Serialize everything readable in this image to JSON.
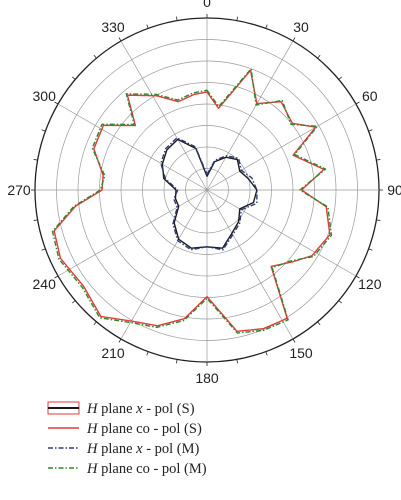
{
  "chart_data": {
    "type": "polar-line",
    "angle_tick_labels": [
      "0",
      "30",
      "60",
      "90",
      "120",
      "150",
      "180",
      "210",
      "240",
      "270",
      "300",
      "330"
    ],
    "angle_direction": "clockwise",
    "zero_angle_position": "top",
    "radial_rings": 8,
    "radial_ticks_labeled": false,
    "grid": true,
    "legend_position": "bottom-left",
    "series": [
      {
        "name_parts": [
          "H",
          " plane ",
          "x",
          " - pol (S)"
        ],
        "color": "#1a1a1a",
        "legend_box_color": "#e23b3b",
        "dash": "solid",
        "points": [
          [
            0,
            0.08
          ],
          [
            15,
            0.17
          ],
          [
            30,
            0.22
          ],
          [
            45,
            0.25
          ],
          [
            60,
            0.22
          ],
          [
            75,
            0.25
          ],
          [
            90,
            0.29
          ],
          [
            105,
            0.28
          ],
          [
            120,
            0.22
          ],
          [
            135,
            0.26
          ],
          [
            150,
            0.29
          ],
          [
            165,
            0.35
          ],
          [
            180,
            0.33
          ],
          [
            195,
            0.35
          ],
          [
            210,
            0.33
          ],
          [
            225,
            0.27
          ],
          [
            240,
            0.19
          ],
          [
            255,
            0.19
          ],
          [
            270,
            0.18
          ],
          [
            285,
            0.26
          ],
          [
            300,
            0.3
          ],
          [
            315,
            0.33
          ],
          [
            330,
            0.34
          ],
          [
            345,
            0.25
          ]
        ]
      },
      {
        "name_parts": [
          "H",
          " plane co - pol (S)"
        ],
        "color": "#e23b3b",
        "dash": "solid",
        "points": [
          [
            0,
            0.57
          ],
          [
            8,
            0.48
          ],
          [
            20,
            0.74
          ],
          [
            30,
            0.58
          ],
          [
            40,
            0.67
          ],
          [
            52,
            0.63
          ],
          [
            60,
            0.73
          ],
          [
            68,
            0.54
          ],
          [
            80,
            0.69
          ],
          [
            90,
            0.55
          ],
          [
            98,
            0.7
          ],
          [
            110,
            0.76
          ],
          [
            122,
            0.72
          ],
          [
            130,
            0.65
          ],
          [
            140,
            0.58
          ],
          [
            148,
            0.88
          ],
          [
            158,
            0.87
          ],
          [
            168,
            0.84
          ],
          [
            180,
            0.62
          ],
          [
            190,
            0.76
          ],
          [
            200,
            0.84
          ],
          [
            210,
            0.88
          ],
          [
            220,
            0.96
          ],
          [
            232,
            0.91
          ],
          [
            245,
            0.94
          ],
          [
            255,
            0.92
          ],
          [
            263,
            0.77
          ],
          [
            270,
            0.61
          ],
          [
            278,
            0.61
          ],
          [
            290,
            0.7
          ],
          [
            302,
            0.71
          ],
          [
            312,
            0.56
          ],
          [
            320,
            0.72
          ],
          [
            332,
            0.62
          ],
          [
            342,
            0.54
          ],
          [
            352,
            0.56
          ]
        ]
      },
      {
        "name_parts": [
          "H",
          " plane ",
          "x",
          " - pol (M)"
        ],
        "color": "#2b3a7e",
        "dash": "dashdot",
        "points": [
          [
            0,
            0.09
          ],
          [
            15,
            0.18
          ],
          [
            30,
            0.23
          ],
          [
            45,
            0.26
          ],
          [
            60,
            0.23
          ],
          [
            75,
            0.27
          ],
          [
            90,
            0.29
          ],
          [
            105,
            0.3
          ],
          [
            120,
            0.23
          ],
          [
            135,
            0.27
          ],
          [
            150,
            0.3
          ],
          [
            165,
            0.36
          ],
          [
            180,
            0.33
          ],
          [
            195,
            0.36
          ],
          [
            210,
            0.34
          ],
          [
            225,
            0.28
          ],
          [
            240,
            0.2
          ],
          [
            255,
            0.2
          ],
          [
            270,
            0.17
          ],
          [
            285,
            0.25
          ],
          [
            300,
            0.31
          ],
          [
            315,
            0.34
          ],
          [
            330,
            0.35
          ],
          [
            345,
            0.26
          ]
        ]
      },
      {
        "name_parts": [
          "H",
          " plane co - pol (M)"
        ],
        "color": "#2a8a2a",
        "dash": "dashdot",
        "points": [
          [
            0,
            0.58
          ],
          [
            8,
            0.49
          ],
          [
            20,
            0.75
          ],
          [
            30,
            0.57
          ],
          [
            40,
            0.68
          ],
          [
            52,
            0.62
          ],
          [
            60,
            0.74
          ],
          [
            68,
            0.55
          ],
          [
            80,
            0.7
          ],
          [
            90,
            0.54
          ],
          [
            98,
            0.71
          ],
          [
            110,
            0.77
          ],
          [
            122,
            0.73
          ],
          [
            130,
            0.64
          ],
          [
            140,
            0.59
          ],
          [
            148,
            0.89
          ],
          [
            158,
            0.88
          ],
          [
            168,
            0.85
          ],
          [
            180,
            0.63
          ],
          [
            190,
            0.77
          ],
          [
            200,
            0.85
          ],
          [
            210,
            0.89
          ],
          [
            220,
            0.97
          ],
          [
            232,
            0.92
          ],
          [
            245,
            0.95
          ],
          [
            255,
            0.93
          ],
          [
            263,
            0.78
          ],
          [
            270,
            0.62
          ],
          [
            278,
            0.6
          ],
          [
            290,
            0.71
          ],
          [
            302,
            0.72
          ],
          [
            312,
            0.57
          ],
          [
            320,
            0.73
          ],
          [
            332,
            0.63
          ],
          [
            342,
            0.55
          ],
          [
            352,
            0.57
          ]
        ]
      }
    ]
  }
}
